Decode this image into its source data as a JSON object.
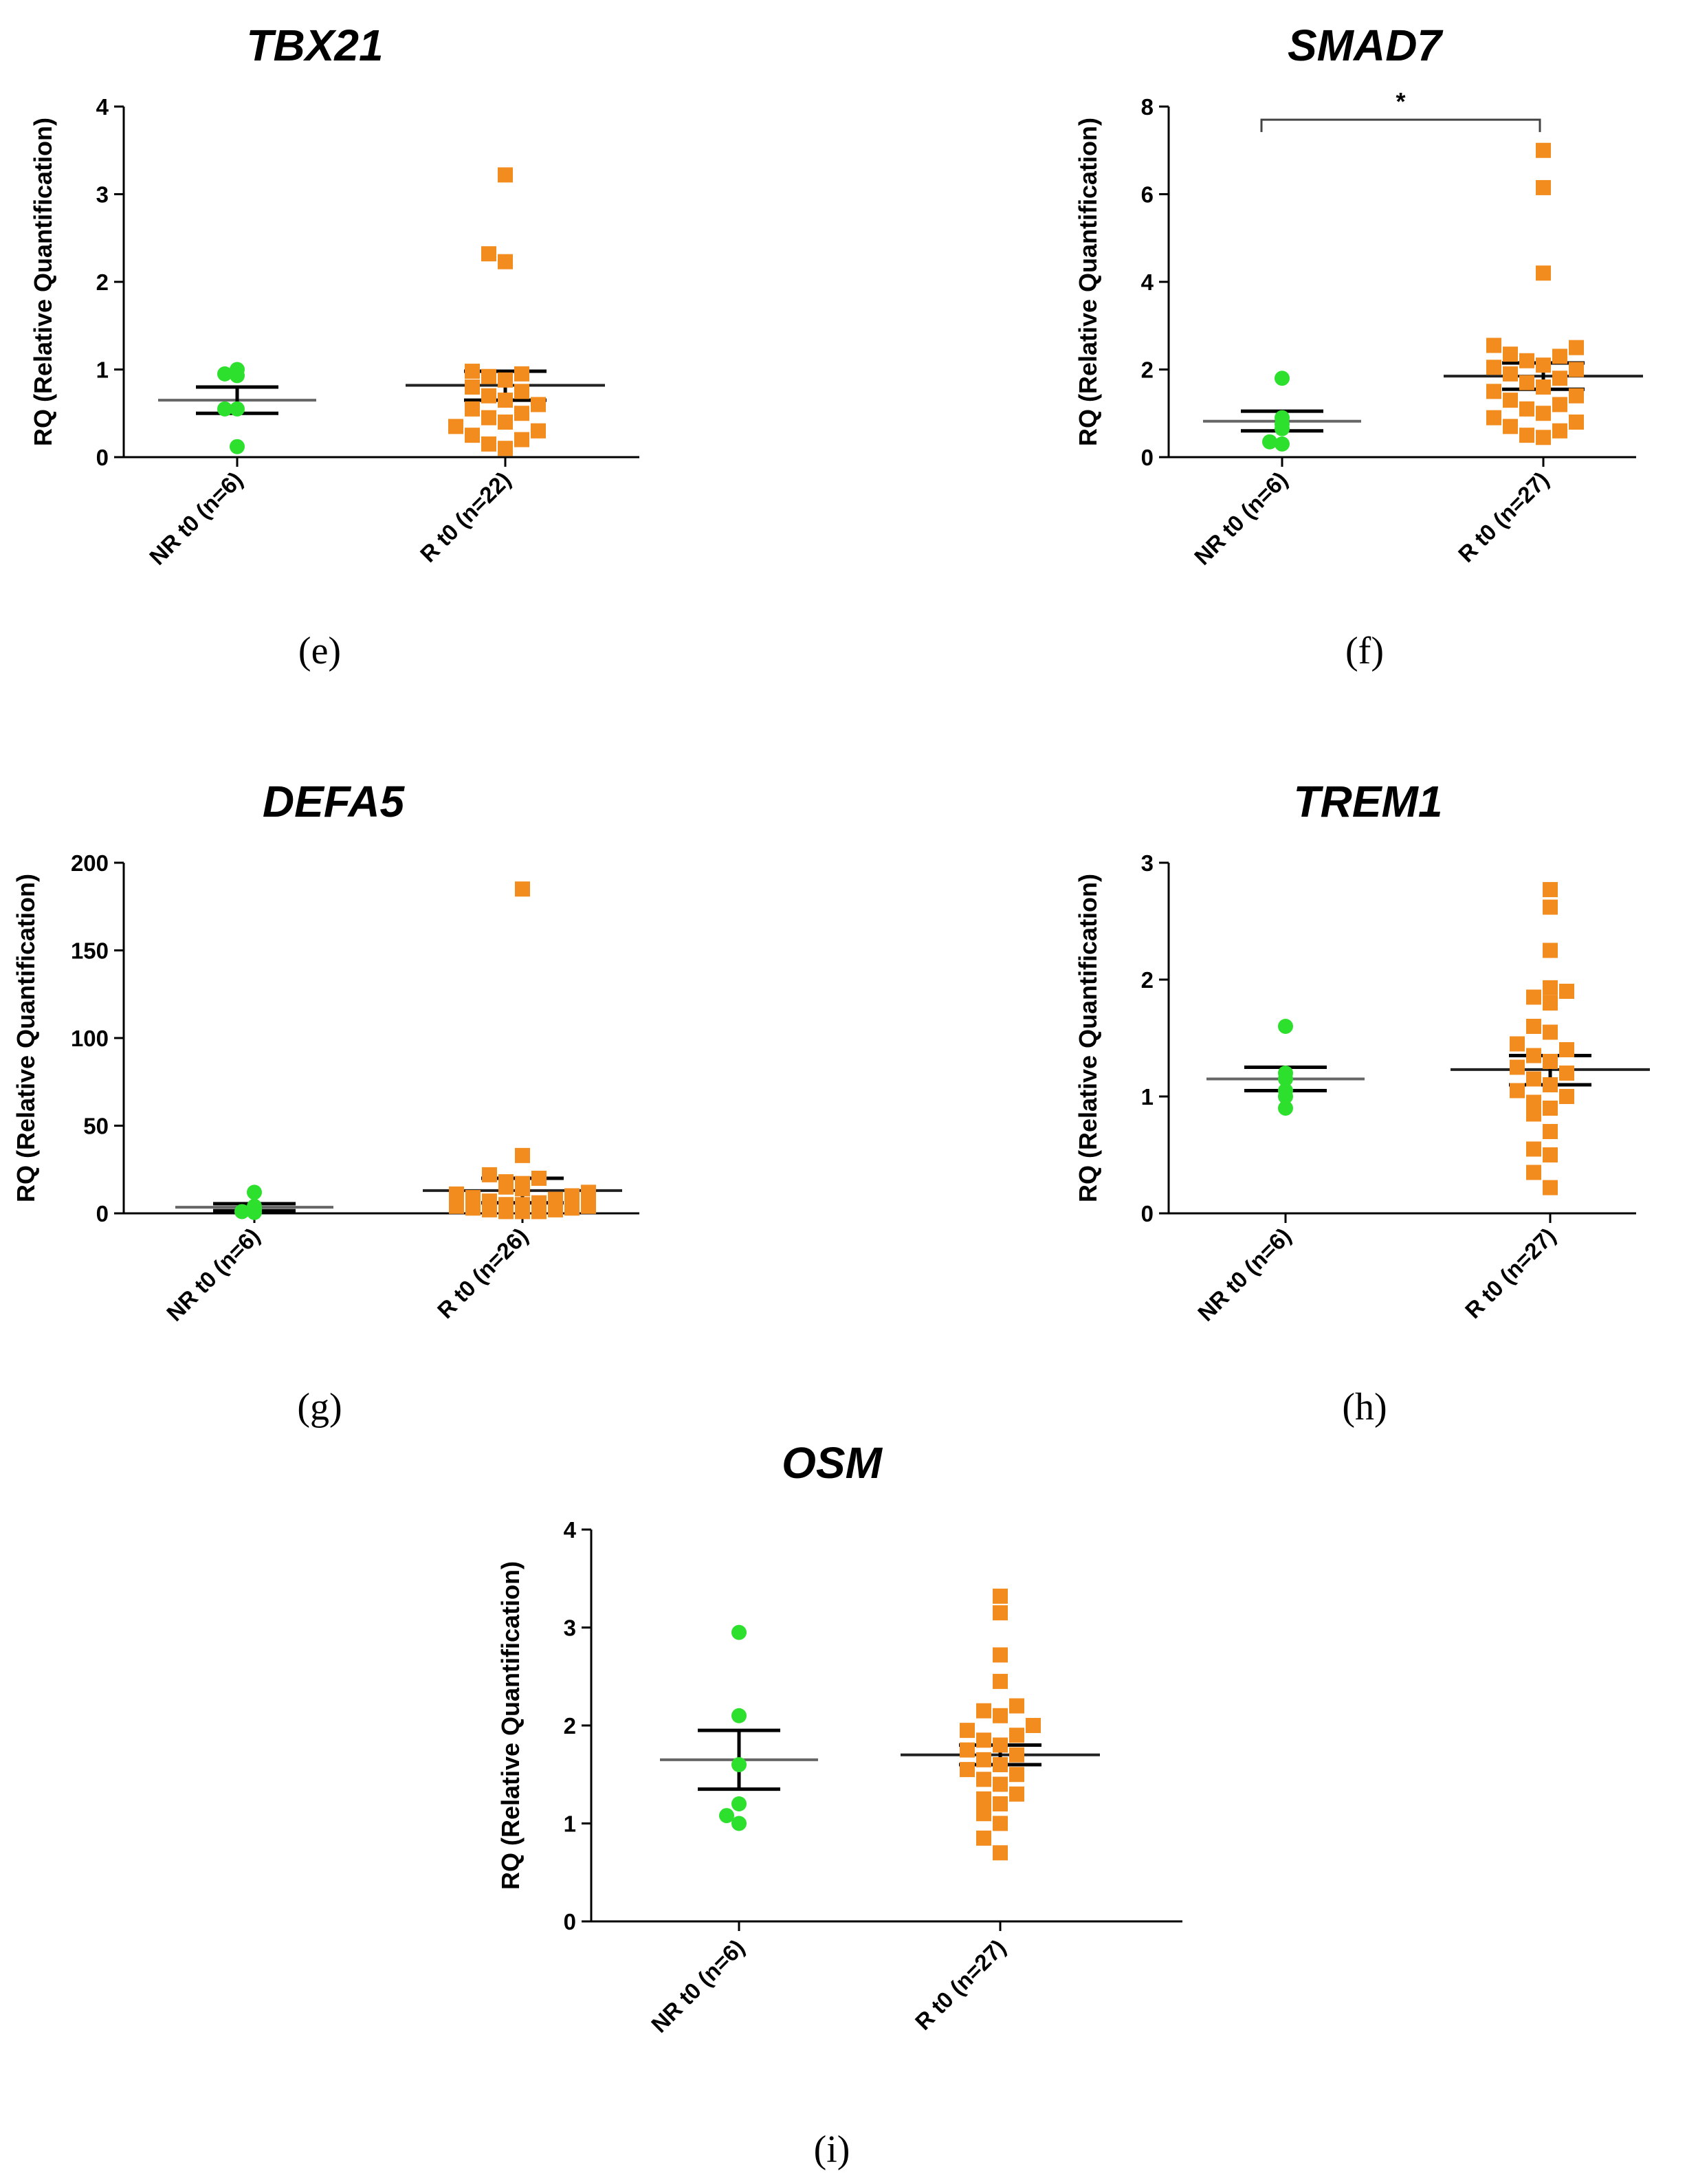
{
  "colors": {
    "nr": "#2ee02e",
    "r": "#f28c1e",
    "axis": "#000000",
    "mean": "#555555",
    "sem": "#000000"
  },
  "chart_data": [
    {
      "panel": "(e)",
      "type": "scatter",
      "title": "TBX21",
      "ylabel": "RQ (Relative Quantification)",
      "ylim": [
        0,
        4
      ],
      "yticks": [
        0,
        1,
        2,
        3,
        4
      ],
      "ytick_labels": [
        "0",
        "1",
        "2",
        "3",
        "4"
      ],
      "categories": [
        "NR t0 (n=6)",
        "R t0 (n=22)"
      ],
      "series": [
        {
          "name": "NR t0 (n=6)",
          "marker": "circle",
          "mean": 0.65,
          "sem_low": 0.5,
          "sem_high": 0.8,
          "values": [
            1.0,
            0.95,
            0.93,
            0.55,
            0.55,
            0.12
          ]
        },
        {
          "name": "R t0 (n=22)",
          "marker": "square",
          "mean": 0.82,
          "sem_low": 0.65,
          "sem_high": 0.98,
          "values": [
            3.22,
            2.32,
            2.23,
            0.98,
            0.95,
            0.92,
            0.88,
            0.8,
            0.75,
            0.7,
            0.65,
            0.6,
            0.55,
            0.5,
            0.45,
            0.4,
            0.35,
            0.3,
            0.25,
            0.2,
            0.15,
            0.1
          ]
        }
      ]
    },
    {
      "panel": "(f)",
      "type": "scatter",
      "title": "SMAD7",
      "ylabel": "RQ (Relative Quantification)",
      "ylim": [
        0,
        8
      ],
      "yticks": [
        0,
        2,
        4,
        6,
        8
      ],
      "ytick_labels": [
        "0",
        "2",
        "4",
        "6",
        "8"
      ],
      "categories": [
        "NR t0 (n=6)",
        "R t0 (n=27)"
      ],
      "significance": {
        "label": "*",
        "y": 7.7
      },
      "series": [
        {
          "name": "NR t0 (n=6)",
          "marker": "circle",
          "mean": 0.82,
          "sem_low": 0.6,
          "sem_high": 1.05,
          "values": [
            1.8,
            0.9,
            0.75,
            0.65,
            0.35,
            0.3
          ]
        },
        {
          "name": "R t0 (n=27)",
          "marker": "square",
          "mean": 1.85,
          "sem_low": 1.55,
          "sem_high": 2.15,
          "values": [
            7.0,
            6.15,
            4.2,
            2.55,
            2.5,
            2.35,
            2.3,
            2.2,
            2.1,
            2.05,
            2.0,
            1.9,
            1.8,
            1.7,
            1.6,
            1.5,
            1.4,
            1.3,
            1.2,
            1.1,
            1.0,
            0.9,
            0.8,
            0.7,
            0.6,
            0.5,
            0.45
          ]
        }
      ]
    },
    {
      "panel": "(g)",
      "type": "scatter",
      "title": "DEFA5",
      "ylabel": "RQ (Relative Quantification)",
      "ylim": [
        0,
        200
      ],
      "yticks": [
        0,
        50,
        100,
        150,
        200
      ],
      "ytick_labels": [
        "0",
        "50",
        "100",
        "150",
        "200"
      ],
      "categories": [
        "NR t0 (n=6)",
        "R t0 (n=26)"
      ],
      "series": [
        {
          "name": "NR t0 (n=6)",
          "marker": "circle",
          "mean": 3.5,
          "sem_low": 1.5,
          "sem_high": 5.5,
          "values": [
            12,
            4,
            3,
            2,
            1,
            0.5
          ]
        },
        {
          "name": "R t0 (n=26)",
          "marker": "square",
          "mean": 13,
          "sem_low": 6,
          "sem_high": 20,
          "values": [
            185,
            33,
            22,
            20,
            18,
            17,
            15,
            14,
            12,
            11,
            10,
            9,
            8,
            7,
            6,
            5,
            5,
            4,
            4,
            3,
            3,
            2,
            2,
            1,
            1,
            1
          ]
        }
      ]
    },
    {
      "panel": "(h)",
      "type": "scatter",
      "title": "TREM1",
      "ylabel": "RQ (Relative Quantification)",
      "ylim": [
        0,
        3
      ],
      "yticks": [
        0,
        1,
        2,
        3
      ],
      "ytick_labels": [
        "0",
        "1",
        "2",
        "3"
      ],
      "categories": [
        "NR t0 (n=6)",
        "R t0 (n=27)"
      ],
      "series": [
        {
          "name": "NR t0 (n=6)",
          "marker": "circle",
          "mean": 1.15,
          "sem_low": 1.05,
          "sem_high": 1.25,
          "values": [
            1.6,
            1.2,
            1.15,
            1.05,
            1.0,
            0.9
          ]
        },
        {
          "name": "R t0 (n=27)",
          "marker": "square",
          "mean": 1.23,
          "sem_low": 1.1,
          "sem_high": 1.35,
          "values": [
            2.77,
            2.62,
            2.25,
            1.93,
            1.9,
            1.85,
            1.8,
            1.6,
            1.55,
            1.45,
            1.4,
            1.35,
            1.3,
            1.25,
            1.2,
            1.15,
            1.1,
            1.05,
            1.0,
            0.95,
            0.9,
            0.85,
            0.7,
            0.55,
            0.5,
            0.35,
            0.22
          ]
        }
      ]
    },
    {
      "panel": "(i)",
      "type": "scatter",
      "title": "OSM",
      "ylabel": "RQ (Relative Quantification)",
      "ylim": [
        0,
        4
      ],
      "yticks": [
        0,
        1,
        2,
        3,
        4
      ],
      "ytick_labels": [
        "0",
        "1",
        "2",
        "3",
        "4"
      ],
      "categories": [
        "NR t0 (n=6)",
        "R t0 (n=27)"
      ],
      "series": [
        {
          "name": "NR t0 (n=6)",
          "marker": "circle",
          "mean": 1.65,
          "sem_low": 1.35,
          "sem_high": 1.95,
          "values": [
            2.95,
            2.1,
            1.6,
            1.2,
            1.08,
            1.0
          ]
        },
        {
          "name": "R t0 (n=27)",
          "marker": "square",
          "mean": 1.7,
          "sem_low": 1.6,
          "sem_high": 1.8,
          "values": [
            3.32,
            3.15,
            2.72,
            2.45,
            2.2,
            2.15,
            2.1,
            2.0,
            1.95,
            1.9,
            1.85,
            1.8,
            1.75,
            1.7,
            1.65,
            1.6,
            1.55,
            1.5,
            1.45,
            1.4,
            1.3,
            1.25,
            1.2,
            1.1,
            1.0,
            0.85,
            0.7
          ]
        }
      ]
    }
  ]
}
